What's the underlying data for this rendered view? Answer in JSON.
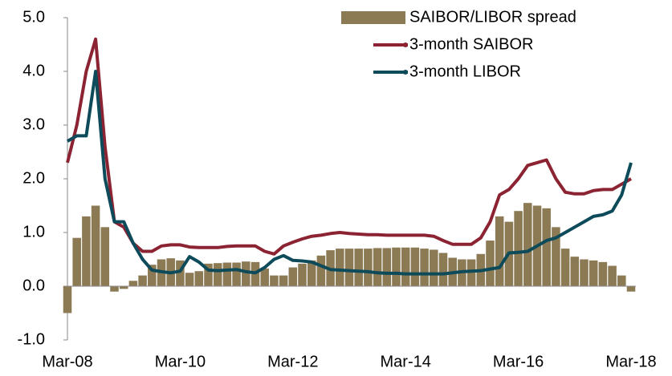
{
  "chart_data": {
    "type": "bar",
    "categories": [
      "Mar-08",
      null,
      null,
      null,
      null,
      null,
      null,
      null,
      null,
      null,
      null,
      null,
      "Mar-10",
      null,
      null,
      null,
      null,
      null,
      null,
      null,
      null,
      null,
      null,
      null,
      "Mar-12",
      null,
      null,
      null,
      null,
      null,
      null,
      null,
      null,
      null,
      null,
      null,
      "Mar-14",
      null,
      null,
      null,
      null,
      null,
      null,
      null,
      null,
      null,
      null,
      null,
      "Mar-16",
      null,
      null,
      null,
      null,
      null,
      null,
      null,
      null,
      null,
      null,
      null,
      "Mar-18"
    ],
    "series": [
      {
        "name": "SAIBOR/LIBOR spread",
        "type": "bar",
        "color": "#8c7a55",
        "values": [
          -0.5,
          0.9,
          1.3,
          1.5,
          1.1,
          -0.1,
          -0.05,
          0.1,
          0.2,
          0.4,
          0.5,
          0.52,
          0.48,
          0.25,
          0.28,
          0.42,
          0.43,
          0.44,
          0.44,
          0.46,
          0.45,
          0.33,
          0.2,
          0.2,
          0.35,
          0.42,
          0.48,
          0.57,
          0.67,
          0.7,
          0.7,
          0.7,
          0.7,
          0.71,
          0.71,
          0.72,
          0.72,
          0.72,
          0.7,
          0.68,
          0.62,
          0.53,
          0.5,
          0.5,
          0.6,
          0.85,
          1.3,
          1.2,
          1.4,
          1.55,
          1.5,
          1.45,
          1.1,
          0.7,
          0.55,
          0.5,
          0.48,
          0.45,
          0.38,
          0.2,
          -0.1
        ]
      },
      {
        "name": "3-month SAIBOR",
        "type": "line",
        "color": "#8b2332",
        "values": [
          2.3,
          3.0,
          4.0,
          4.6,
          2.6,
          1.2,
          1.1,
          0.8,
          0.65,
          0.65,
          0.75,
          0.77,
          0.77,
          0.73,
          0.72,
          0.72,
          0.72,
          0.74,
          0.75,
          0.75,
          0.75,
          0.65,
          0.6,
          0.75,
          0.82,
          0.88,
          0.93,
          0.95,
          0.98,
          1.0,
          0.98,
          0.97,
          0.96,
          0.96,
          0.95,
          0.95,
          0.95,
          0.95,
          0.95,
          0.93,
          0.85,
          0.78,
          0.78,
          0.78,
          0.9,
          1.2,
          1.7,
          1.8,
          2.0,
          2.25,
          2.3,
          2.35,
          2.0,
          1.75,
          1.72,
          1.72,
          1.78,
          1.8,
          1.8,
          1.9,
          2.0
        ]
      },
      {
        "name": "3-month LIBOR",
        "type": "line",
        "color": "#0d4a5a",
        "values": [
          2.7,
          2.8,
          2.8,
          4.0,
          2.0,
          1.2,
          1.2,
          0.8,
          0.5,
          0.3,
          0.27,
          0.25,
          0.28,
          0.55,
          0.45,
          0.3,
          0.29,
          0.3,
          0.31,
          0.27,
          0.25,
          0.35,
          0.5,
          0.57,
          0.48,
          0.47,
          0.45,
          0.38,
          0.31,
          0.3,
          0.29,
          0.28,
          0.27,
          0.25,
          0.24,
          0.24,
          0.23,
          0.23,
          0.23,
          0.23,
          0.23,
          0.25,
          0.27,
          0.28,
          0.29,
          0.32,
          0.35,
          0.62,
          0.63,
          0.65,
          0.75,
          0.85,
          0.9,
          1.0,
          1.1,
          1.2,
          1.3,
          1.33,
          1.4,
          1.7,
          2.3
        ]
      }
    ],
    "ylim": [
      -1,
      5
    ],
    "yticks": [
      {
        "value": -1,
        "label": "-1.0"
      },
      {
        "value": 0,
        "label": "0.0"
      },
      {
        "value": 1,
        "label": "1.0"
      },
      {
        "value": 2,
        "label": "2.0"
      },
      {
        "value": 3,
        "label": "3.0"
      },
      {
        "value": 4,
        "label": "4.0"
      },
      {
        "value": 5,
        "label": "5.0"
      }
    ],
    "legend": "upper right"
  }
}
